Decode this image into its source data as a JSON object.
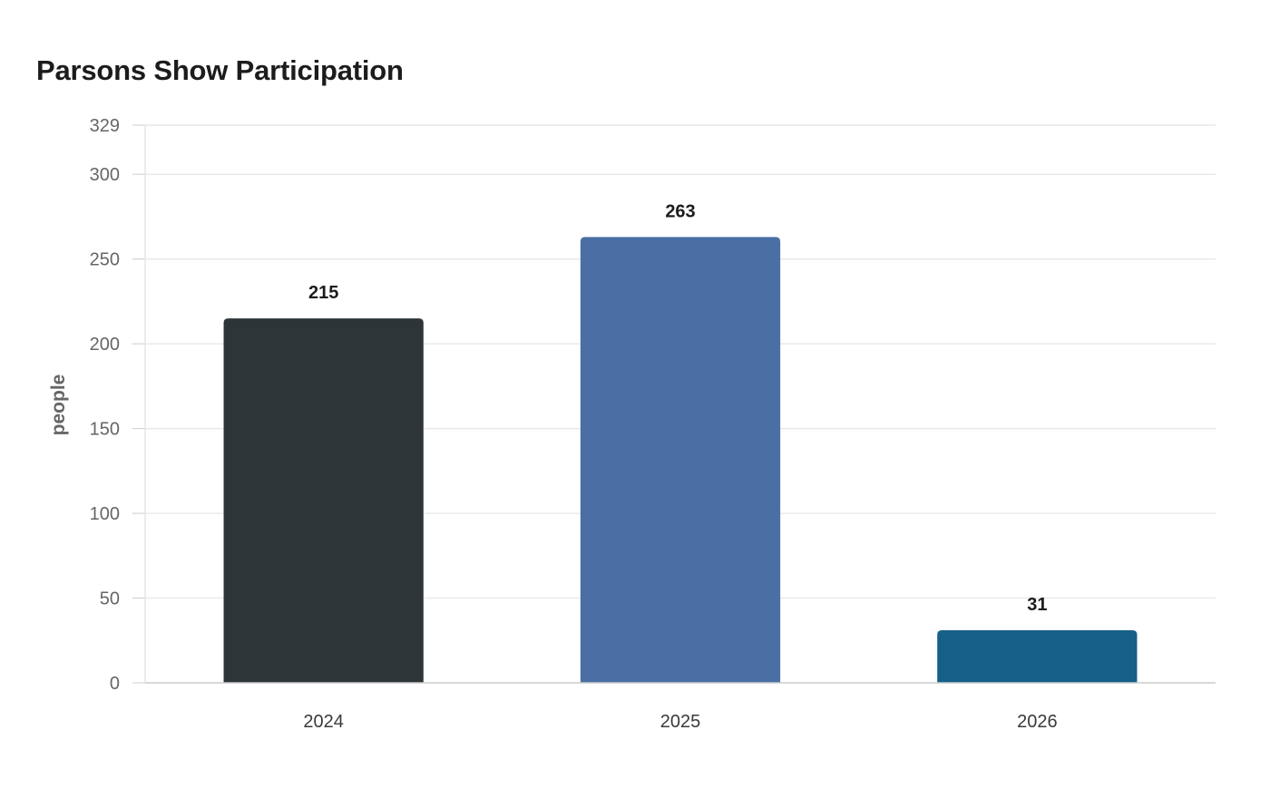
{
  "chart_data": {
    "type": "bar",
    "title": "Parsons Show Participation",
    "xlabel": "",
    "ylabel": "people",
    "categories": [
      "2024",
      "2025",
      "2026"
    ],
    "values": [
      215,
      263,
      31
    ],
    "ylim": [
      0,
      329
    ],
    "yticks": [
      0,
      50,
      100,
      150,
      200,
      250,
      300,
      329
    ],
    "grid": true,
    "legend": "none",
    "colors": [
      "#2e3538",
      "#4a6fa5",
      "#166088"
    ]
  }
}
